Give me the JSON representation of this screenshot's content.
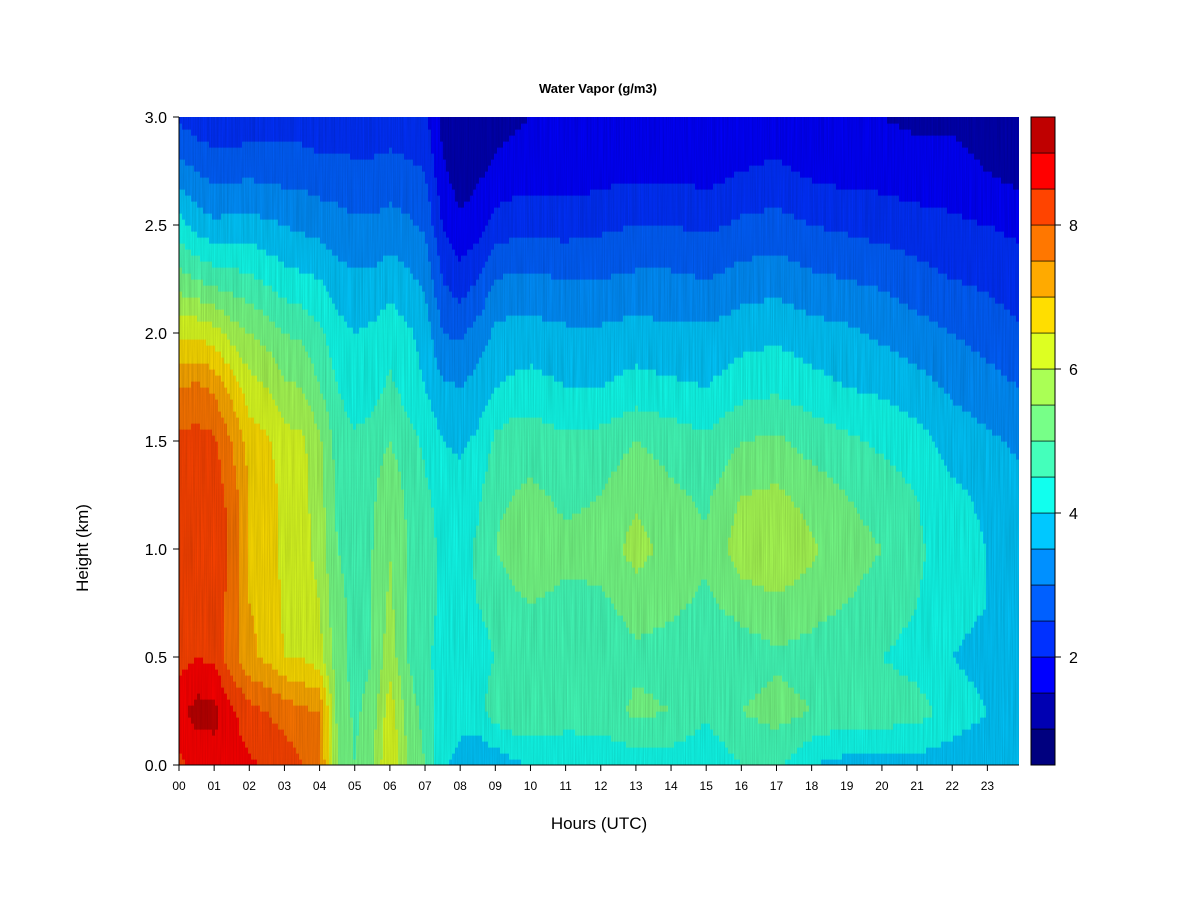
{
  "chart_data": {
    "type": "heatmap",
    "title": "Water Vapor (g/m3)",
    "xlabel": "Hours (UTC)",
    "ylabel": "Height (km)",
    "x_tick_labels": [
      "00",
      "01",
      "02",
      "03",
      "04",
      "05",
      "06",
      "07",
      "08",
      "09",
      "10",
      "11",
      "12",
      "13",
      "14",
      "15",
      "16",
      "17",
      "18",
      "19",
      "20",
      "21",
      "22",
      "23"
    ],
    "y_tick_labels": [
      "0.0",
      "0.5",
      "1.0",
      "1.5",
      "2.0",
      "2.5",
      "3.0"
    ],
    "xlim": [
      0,
      23.9
    ],
    "ylim": [
      0,
      3.0
    ],
    "colorbar": {
      "levels": [
        0.5,
        1.0,
        1.5,
        2.0,
        2.5,
        3.0,
        3.5,
        4.0,
        4.5,
        5.0,
        5.5,
        6.0,
        6.5,
        7.0,
        7.5,
        8.0,
        8.5,
        9.0,
        9.5
      ],
      "tick_labels": [
        "2",
        "4",
        "6",
        "8"
      ],
      "colors": [
        "#00007F",
        "#0000B2",
        "#0000FF",
        "#0031FF",
        "#0060FF",
        "#0090FF",
        "#00C8FF",
        "#11FFEE",
        "#44FFBB",
        "#77FF88",
        "#AAFF55",
        "#DDFF22",
        "#FFDE00",
        "#FFAA00",
        "#FF7700",
        "#FF4400",
        "#FF0000",
        "#BF0000"
      ]
    },
    "heights": [
      0.0,
      0.25,
      0.5,
      0.75,
      1.0,
      1.25,
      1.5,
      1.75,
      2.0,
      2.25,
      2.5,
      2.75,
      3.0
    ],
    "hours": [
      0,
      0.5,
      1,
      1.5,
      2,
      2.5,
      3,
      3.5,
      4,
      4.5,
      5,
      5.5,
      6,
      6.5,
      7,
      7.5,
      8,
      8.5,
      9,
      9.5,
      10,
      11,
      12,
      13,
      14,
      15,
      16,
      17,
      18,
      19,
      20,
      21,
      22,
      23,
      23.9
    ],
    "values": [
      [
        8.4,
        8.6,
        8.7,
        8.7,
        8.6,
        8.4,
        8.3,
        8.0,
        7.6,
        5.5,
        5.0,
        5.5,
        6.5,
        5.5,
        5.0,
        4.1,
        3.8,
        3.6,
        3.6,
        3.9,
        4.0,
        4.0,
        4.1,
        4.2,
        4.2,
        4.1,
        4.5,
        4.6,
        4.0,
        3.8,
        3.8,
        3.8,
        3.7,
        3.6,
        3.5
      ],
      [
        8.8,
        9.2,
        9.2,
        8.6,
        8.2,
        8.0,
        7.8,
        7.6,
        7.5,
        5.4,
        4.9,
        5.2,
        6.3,
        5.3,
        4.8,
        4.3,
        4.2,
        4.3,
        4.8,
        4.9,
        5.0,
        4.8,
        4.8,
        5.1,
        5.0,
        4.6,
        5.0,
        5.2,
        5.0,
        4.8,
        4.8,
        4.7,
        4.3,
        4.0,
        3.8
      ],
      [
        8.3,
        8.5,
        8.4,
        7.7,
        7.1,
        6.9,
        6.5,
        6.5,
        6.2,
        5.2,
        4.8,
        5.0,
        5.8,
        5.0,
        4.6,
        4.3,
        4.2,
        4.3,
        4.5,
        4.6,
        4.7,
        4.7,
        4.6,
        4.9,
        4.8,
        4.6,
        4.7,
        4.9,
        4.8,
        4.6,
        4.5,
        4.3,
        4.0,
        3.8,
        3.6
      ],
      [
        8.2,
        8.4,
        8.3,
        7.8,
        7.0,
        6.9,
        6.4,
        6.3,
        6.0,
        5.1,
        4.9,
        5.0,
        5.6,
        5.0,
        4.7,
        4.4,
        4.3,
        4.5,
        4.7,
        4.9,
        5.0,
        4.9,
        4.9,
        5.2,
        5.1,
        4.9,
        5.2,
        5.4,
        5.2,
        5.0,
        4.8,
        4.5,
        4.2,
        4.0,
        3.8
      ],
      [
        8.3,
        8.5,
        8.4,
        7.9,
        7.0,
        6.8,
        6.3,
        6.2,
        5.8,
        5.0,
        4.9,
        5.0,
        5.5,
        5.0,
        4.7,
        4.4,
        4.3,
        4.6,
        5.0,
        5.2,
        5.3,
        5.1,
        5.2,
        5.7,
        5.3,
        5.1,
        5.8,
        6.0,
        5.6,
        5.2,
        5.0,
        4.6,
        4.2,
        4.0,
        3.8
      ],
      [
        8.2,
        8.4,
        8.3,
        7.8,
        7.0,
        6.8,
        6.3,
        6.2,
        5.7,
        4.9,
        4.8,
        4.9,
        5.4,
        4.9,
        4.6,
        4.3,
        4.2,
        4.4,
        4.9,
        5.0,
        5.1,
        4.9,
        5.0,
        5.4,
        5.1,
        4.9,
        5.5,
        5.6,
        5.3,
        5.0,
        4.8,
        4.5,
        4.1,
        3.9,
        3.7
      ],
      [
        8.1,
        8.2,
        8.1,
        7.5,
        6.8,
        6.6,
        6.2,
        6.1,
        5.6,
        4.8,
        4.6,
        4.7,
        5.0,
        4.7,
        4.4,
        4.0,
        3.9,
        4.1,
        4.6,
        4.8,
        4.8,
        4.6,
        4.7,
        5.0,
        4.8,
        4.6,
        5.0,
        5.1,
        4.8,
        4.6,
        4.4,
        4.2,
        3.8,
        3.6,
        3.4
      ],
      [
        7.5,
        7.6,
        7.4,
        6.8,
        6.2,
        6.0,
        5.6,
        5.5,
        5.0,
        4.5,
        4.2,
        4.3,
        4.6,
        4.3,
        4.0,
        3.6,
        3.5,
        3.7,
        4.0,
        4.1,
        4.2,
        4.0,
        4.0,
        4.2,
        4.1,
        4.0,
        4.3,
        4.4,
        4.2,
        4.0,
        3.9,
        3.7,
        3.4,
        3.2,
        3.0
      ],
      [
        6.4,
        6.4,
        6.2,
        5.8,
        5.5,
        5.3,
        5.0,
        4.9,
        4.6,
        4.2,
        4.0,
        4.1,
        4.3,
        4.1,
        3.8,
        3.0,
        2.9,
        3.2,
        3.6,
        3.7,
        3.7,
        3.6,
        3.6,
        3.7,
        3.6,
        3.6,
        3.8,
        3.9,
        3.7,
        3.6,
        3.4,
        3.2,
        3.0,
        2.8,
        2.6
      ],
      [
        5.2,
        5.0,
        4.8,
        4.7,
        4.6,
        4.4,
        4.2,
        4.1,
        4.0,
        3.7,
        3.6,
        3.6,
        3.8,
        3.6,
        3.4,
        2.5,
        2.2,
        2.5,
        3.0,
        3.1,
        3.1,
        3.0,
        3.0,
        3.1,
        3.1,
        3.0,
        3.2,
        3.3,
        3.1,
        3.0,
        2.9,
        2.7,
        2.5,
        2.4,
        2.2
      ],
      [
        4.2,
        3.8,
        3.6,
        3.7,
        3.7,
        3.6,
        3.5,
        3.4,
        3.3,
        3.2,
        3.1,
        3.1,
        3.2,
        3.1,
        2.9,
        2.0,
        1.6,
        1.8,
        2.2,
        2.3,
        2.3,
        2.3,
        2.4,
        2.5,
        2.5,
        2.4,
        2.6,
        2.7,
        2.5,
        2.4,
        2.3,
        2.2,
        2.1,
        2.0,
        1.9
      ],
      [
        3.2,
        3.0,
        2.8,
        2.8,
        2.9,
        2.8,
        2.8,
        2.8,
        2.7,
        2.7,
        2.6,
        2.6,
        2.7,
        2.6,
        2.5,
        1.6,
        1.2,
        1.4,
        1.6,
        1.7,
        1.8,
        1.7,
        1.8,
        1.9,
        1.9,
        1.8,
        2.0,
        2.1,
        1.9,
        1.8,
        1.8,
        1.7,
        1.7,
        1.5,
        1.3
      ],
      [
        2.4,
        2.2,
        2.1,
        2.1,
        2.2,
        2.2,
        2.2,
        2.2,
        2.1,
        2.1,
        2.2,
        2.2,
        2.2,
        2.2,
        2.1,
        1.3,
        1.0,
        1.1,
        1.3,
        1.4,
        1.5,
        1.5,
        1.5,
        1.6,
        1.6,
        1.5,
        1.6,
        1.7,
        1.6,
        1.5,
        1.5,
        1.4,
        1.4,
        1.2,
        1.0
      ]
    ]
  }
}
